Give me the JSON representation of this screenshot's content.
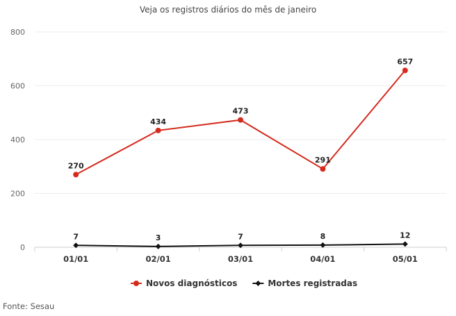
{
  "chart_data": {
    "type": "line",
    "title": "Veja os registros diários do mês de janeiro",
    "categories": [
      "01/01",
      "02/01",
      "03/01",
      "04/01",
      "05/01"
    ],
    "series": [
      {
        "name": "Novos diagnósticos",
        "values": [
          270,
          434,
          473,
          291,
          657
        ],
        "color": "#d52b1e"
      },
      {
        "name": "Mortes registradas",
        "values": [
          7,
          3,
          7,
          8,
          12
        ],
        "color": "#111111"
      }
    ],
    "ylim": [
      0,
      800
    ],
    "yticks": [
      0,
      200,
      400,
      600,
      800
    ],
    "grid": true,
    "legend": "bottom"
  },
  "source": "Fonte: Sesau"
}
